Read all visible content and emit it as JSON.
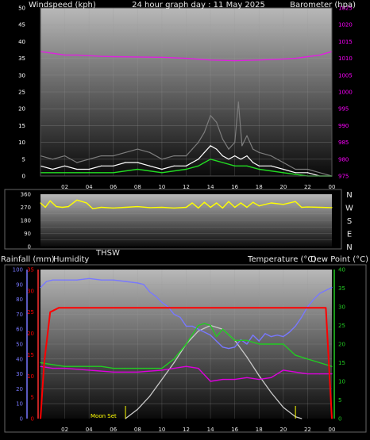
{
  "header": {
    "left_label": "Windspeed (kph)",
    "title": "24 hour graph day : 11 May 2025",
    "right_label": "Barometer (hpa)"
  },
  "colors": {
    "background": "#000000",
    "wind_tick": "#ffffff",
    "baro_tick": "#ff00ff",
    "windspeed": "#ffffff",
    "gust": "#7d7d7d",
    "wind_avg": "#22dd22",
    "barometer": "#e020e0",
    "direction": "#ffff00",
    "thsw": "#c8c8c8",
    "rain": "#ff0000",
    "humidity": "#7878ff",
    "temperature": "#22cc22",
    "dewpoint": "#dd00dd",
    "solar": "#c8c8c8",
    "moon": "#ffff00"
  },
  "chart_data": [
    {
      "type": "line",
      "name": "wind-barometer",
      "title": "24 hour graph day : 11 May 2025",
      "x_ticks": [
        "02",
        "04",
        "06",
        "08",
        "10",
        "12",
        "14",
        "16",
        "18",
        "20",
        "22",
        "00"
      ],
      "left_axis": {
        "label": "Windspeed (kph)",
        "ylim": [
          0,
          50
        ],
        "ticks": [
          "0",
          "5",
          "10",
          "15",
          "20",
          "25",
          "30",
          "35",
          "40",
          "45",
          "50"
        ]
      },
      "right_axis": {
        "label": "Barometer (hpa)",
        "ylim": [
          975,
          1025
        ],
        "ticks": [
          "975",
          "980",
          "985",
          "990",
          "995",
          "1000",
          "1005",
          "1010",
          "1015",
          "1020",
          "1025"
        ]
      },
      "series": [
        {
          "id": "gust",
          "axis": "left",
          "x_hours": [
            0,
            1,
            2,
            3,
            4,
            5,
            6,
            7,
            8,
            9,
            10,
            11,
            12,
            12.5,
            13,
            13.5,
            14,
            14.5,
            15,
            15.5,
            16,
            16.3,
            16.6,
            17,
            17.5,
            18,
            19,
            20,
            21,
            22,
            23,
            24
          ],
          "values": [
            6,
            5,
            6,
            4,
            5,
            6,
            6,
            7,
            8,
            7,
            5,
            6,
            6,
            8,
            10,
            13,
            18,
            16,
            11,
            8,
            10,
            22,
            9,
            12,
            8,
            7,
            6,
            4,
            2,
            2,
            1,
            0
          ]
        },
        {
          "id": "windspeed",
          "axis": "left",
          "x_hours": [
            0,
            1,
            2,
            3,
            4,
            5,
            6,
            7,
            8,
            9,
            10,
            11,
            12,
            12.5,
            13,
            13.5,
            14,
            14.5,
            15,
            15.5,
            16,
            16.5,
            17,
            17.5,
            18,
            19,
            20,
            21,
            22,
            23,
            24
          ],
          "values": [
            3,
            2,
            3,
            2,
            2,
            3,
            3,
            4,
            4,
            3,
            2,
            3,
            3,
            4,
            5,
            7,
            9,
            8,
            6,
            5,
            6,
            5,
            6,
            4,
            3,
            3,
            2,
            1,
            1,
            0,
            0
          ]
        },
        {
          "id": "wind_avg",
          "axis": "left",
          "x_hours": [
            0,
            2,
            4,
            6,
            8,
            10,
            12,
            13,
            14,
            15,
            16,
            17,
            18,
            20,
            22,
            24
          ],
          "values": [
            1,
            1,
            1,
            1,
            2,
            1,
            2,
            3,
            5,
            4,
            3,
            3,
            2,
            1,
            0,
            0
          ]
        },
        {
          "id": "barometer",
          "axis": "right",
          "x_hours": [
            0,
            1,
            2,
            3,
            4,
            5,
            6,
            8,
            10,
            12,
            14,
            16,
            18,
            20,
            21,
            22,
            23,
            24
          ],
          "values": [
            1012,
            1011.5,
            1011,
            1011,
            1010.8,
            1010.6,
            1010.5,
            1010.4,
            1010.3,
            1010,
            1009.5,
            1009.3,
            1009.5,
            1009.8,
            1010,
            1010.5,
            1011,
            1012
          ]
        }
      ]
    },
    {
      "type": "line",
      "name": "wind-direction",
      "left_axis": {
        "ylim": [
          0,
          360
        ],
        "ticks": [
          "0",
          "90",
          "180",
          "270",
          "360"
        ]
      },
      "compass_labels": [
        "N",
        "W",
        "S",
        "E",
        "N"
      ],
      "series": [
        {
          "id": "direction",
          "x_hours": [
            0,
            0.4,
            0.8,
            1.3,
            1.8,
            2.3,
            3,
            3.8,
            4.3,
            5,
            6,
            7,
            8,
            9,
            10,
            11,
            12,
            12.5,
            13,
            13.5,
            14,
            14.5,
            15,
            15.5,
            16,
            16.5,
            17,
            17.5,
            18,
            19,
            20,
            21,
            21.5,
            22,
            23,
            24
          ],
          "values": [
            300,
            270,
            315,
            275,
            270,
            275,
            320,
            300,
            260,
            270,
            265,
            270,
            275,
            268,
            270,
            265,
            270,
            300,
            265,
            305,
            270,
            300,
            265,
            310,
            270,
            300,
            270,
            305,
            280,
            300,
            290,
            310,
            270,
            272,
            270,
            268
          ]
        }
      ]
    },
    {
      "type": "line",
      "name": "temperature-humidity-rain",
      "labels": {
        "rain": "Rainfall (mm)",
        "humidity": "Humidity",
        "thsw": "THSW",
        "temperature": "Temperature (°C)",
        "dewpoint": "Dew Point (°C)"
      },
      "x_ticks": [
        "02",
        "04",
        "06",
        "08",
        "10",
        "12",
        "14",
        "16",
        "18",
        "20",
        "22",
        "00"
      ],
      "humidity_axis": {
        "ylim": [
          0,
          100
        ],
        "ticks": [
          "0",
          "10",
          "20",
          "30",
          "40",
          "50",
          "60",
          "70",
          "80",
          "90",
          "100"
        ]
      },
      "rain_axis": {
        "ylim": [
          0,
          35
        ],
        "ticks": [
          "0",
          "5",
          "10",
          "15",
          "20",
          "25",
          "30",
          "35"
        ]
      },
      "temperature_axis": {
        "ylim": [
          0,
          40
        ],
        "ticks": [
          "0",
          "5",
          "10",
          "15",
          "20",
          "25",
          "30",
          "35",
          "40"
        ]
      },
      "annotations": [
        "Moon Set"
      ],
      "series": [
        {
          "id": "humidity",
          "axis": "humidity",
          "x_hours": [
            0,
            0.5,
            1,
            2,
            3,
            4,
            5,
            6,
            7,
            8,
            8.5,
            9,
            9.5,
            10,
            10.5,
            11,
            11.5,
            12,
            12.5,
            13,
            14,
            14.5,
            15,
            15.5,
            16,
            16.5,
            17,
            17.5,
            18,
            18.5,
            19,
            19.5,
            20,
            20.5,
            21,
            21.5,
            22,
            22.5,
            23,
            23.5,
            24
          ],
          "values": [
            88,
            92,
            93,
            93,
            93,
            94,
            93,
            93,
            92,
            91,
            90,
            85,
            82,
            78,
            75,
            70,
            68,
            62,
            62,
            60,
            56,
            52,
            48,
            47,
            48,
            53,
            50,
            56,
            52,
            57,
            55,
            56,
            55,
            58,
            62,
            68,
            75,
            80,
            84,
            86,
            88
          ]
        },
        {
          "id": "rain",
          "axis": "rain",
          "x_hours": [
            0,
            0.3,
            0.8,
            1.5,
            2,
            4,
            8,
            12,
            16,
            20,
            23.5,
            24
          ],
          "values": [
            0,
            13,
            25,
            26,
            26,
            26,
            26,
            26,
            26,
            26,
            26,
            0
          ]
        },
        {
          "id": "temperature",
          "axis": "temperature",
          "x_hours": [
            0,
            1,
            2,
            3,
            4,
            5,
            6,
            7,
            8,
            9,
            10,
            11,
            12,
            13,
            13.5,
            14,
            14.5,
            15,
            16,
            17,
            18,
            19,
            20,
            21,
            22,
            23,
            24
          ],
          "values": [
            15,
            14.5,
            14,
            14,
            14,
            14,
            13.5,
            13.5,
            13.5,
            13.5,
            13.5,
            16,
            20,
            25,
            25.5,
            25,
            22,
            24,
            21,
            21,
            20,
            20,
            20,
            17,
            16,
            15,
            14
          ]
        },
        {
          "id": "dewpoint",
          "axis": "temperature",
          "x_hours": [
            0,
            1,
            2,
            4,
            6,
            8,
            10,
            11,
            12,
            13,
            14,
            15,
            16,
            17,
            18,
            19,
            20,
            21,
            22,
            23,
            24
          ],
          "values": [
            14,
            13.5,
            13.5,
            13,
            12.5,
            12.5,
            13,
            13.5,
            14,
            13.5,
            10,
            10.5,
            10.5,
            11,
            10.5,
            11,
            13,
            12.5,
            12,
            12,
            12
          ]
        },
        {
          "id": "thsw",
          "axis": "temperature",
          "x_hours": [
            7,
            8,
            9,
            10,
            11,
            12,
            13,
            14,
            15,
            16,
            17,
            18,
            19,
            20,
            21,
            21.5
          ],
          "values": [
            0,
            2.5,
            6,
            10.5,
            15,
            20,
            23.5,
            25,
            24,
            21,
            16.5,
            11.5,
            7,
            3,
            0.5,
            0
          ]
        }
      ]
    }
  ]
}
